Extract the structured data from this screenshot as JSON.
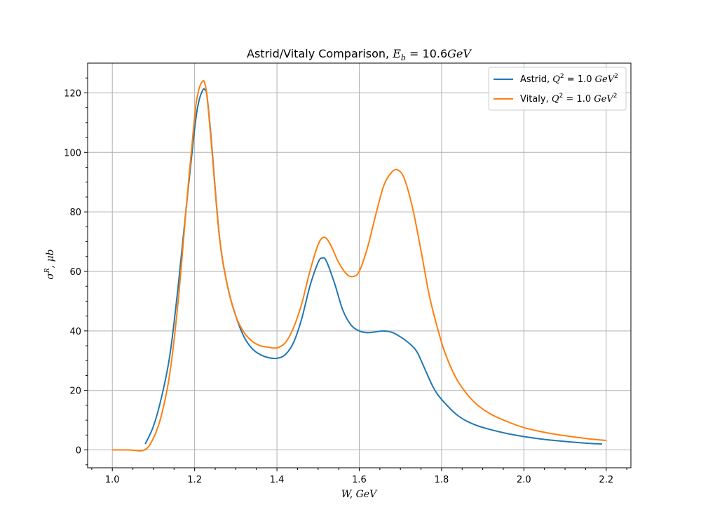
{
  "chart_data": {
    "type": "line",
    "title": "Astrid/Vitaly Comparison, E_b = 10.6GeV",
    "xlabel": "W, GeV",
    "ylabel": "σ^R, μb",
    "xlim": [
      0.94,
      2.26
    ],
    "ylim": [
      -6,
      130
    ],
    "xticks": [
      "1.0",
      "1.2",
      "1.4",
      "1.6",
      "1.8",
      "2.0",
      "2.2"
    ],
    "yticks": [
      "0",
      "20",
      "40",
      "60",
      "80",
      "100",
      "120"
    ],
    "grid": true,
    "legend_position": "top-right",
    "series": [
      {
        "name": "Astrid, Q² = 1.0 GeV²",
        "color": "#1f77b4",
        "x": [
          1.08,
          1.1,
          1.12,
          1.14,
          1.16,
          1.18,
          1.2,
          1.21,
          1.22,
          1.225,
          1.23,
          1.24,
          1.26,
          1.28,
          1.3,
          1.32,
          1.34,
          1.36,
          1.38,
          1.4,
          1.42,
          1.44,
          1.46,
          1.48,
          1.5,
          1.51,
          1.52,
          1.54,
          1.56,
          1.58,
          1.6,
          1.62,
          1.64,
          1.66,
          1.68,
          1.7,
          1.72,
          1.74,
          1.76,
          1.78,
          1.8,
          1.84,
          1.88,
          1.92,
          1.96,
          2.0,
          2.04,
          2.08,
          2.12,
          2.16,
          2.19
        ],
        "values": [
          2,
          8,
          18,
          32,
          55,
          82,
          108,
          117,
          121,
          121,
          119,
          105,
          72,
          55,
          45,
          38,
          34,
          32,
          31,
          30.8,
          32,
          36,
          44,
          55,
          63,
          64.5,
          63.5,
          56,
          47,
          42,
          40,
          39.4,
          39.7,
          40,
          39.5,
          38,
          36,
          33,
          27,
          21,
          17,
          11.5,
          8.5,
          6.8,
          5.5,
          4.5,
          3.7,
          3.1,
          2.6,
          2.2,
          2
        ]
      },
      {
        "name": "Vitaly, Q² = 1.0 GeV²",
        "color": "#ff7f0e",
        "x": [
          1.0,
          1.04,
          1.078,
          1.1,
          1.12,
          1.14,
          1.16,
          1.18,
          1.2,
          1.21,
          1.22,
          1.225,
          1.23,
          1.24,
          1.26,
          1.28,
          1.3,
          1.32,
          1.34,
          1.36,
          1.38,
          1.4,
          1.42,
          1.44,
          1.46,
          1.48,
          1.5,
          1.515,
          1.53,
          1.55,
          1.57,
          1.585,
          1.6,
          1.62,
          1.64,
          1.66,
          1.68,
          1.695,
          1.71,
          1.73,
          1.75,
          1.77,
          1.79,
          1.81,
          1.84,
          1.88,
          1.92,
          1.96,
          2.0,
          2.04,
          2.08,
          2.12,
          2.16,
          2.2
        ],
        "values": [
          0,
          0,
          0,
          4,
          12,
          26,
          50,
          82,
          112,
          121,
          124,
          123,
          119,
          104,
          72,
          55,
          45,
          39.5,
          36.5,
          35,
          34.5,
          34.3,
          36,
          41,
          49,
          60,
          69,
          71.5,
          69,
          63,
          59,
          58.3,
          60,
          68,
          79,
          89,
          93.5,
          94,
          91,
          81,
          67,
          52,
          41,
          32,
          23,
          16,
          12,
          9.5,
          7.5,
          6.2,
          5.2,
          4.4,
          3.7,
          3.2
        ]
      }
    ]
  }
}
